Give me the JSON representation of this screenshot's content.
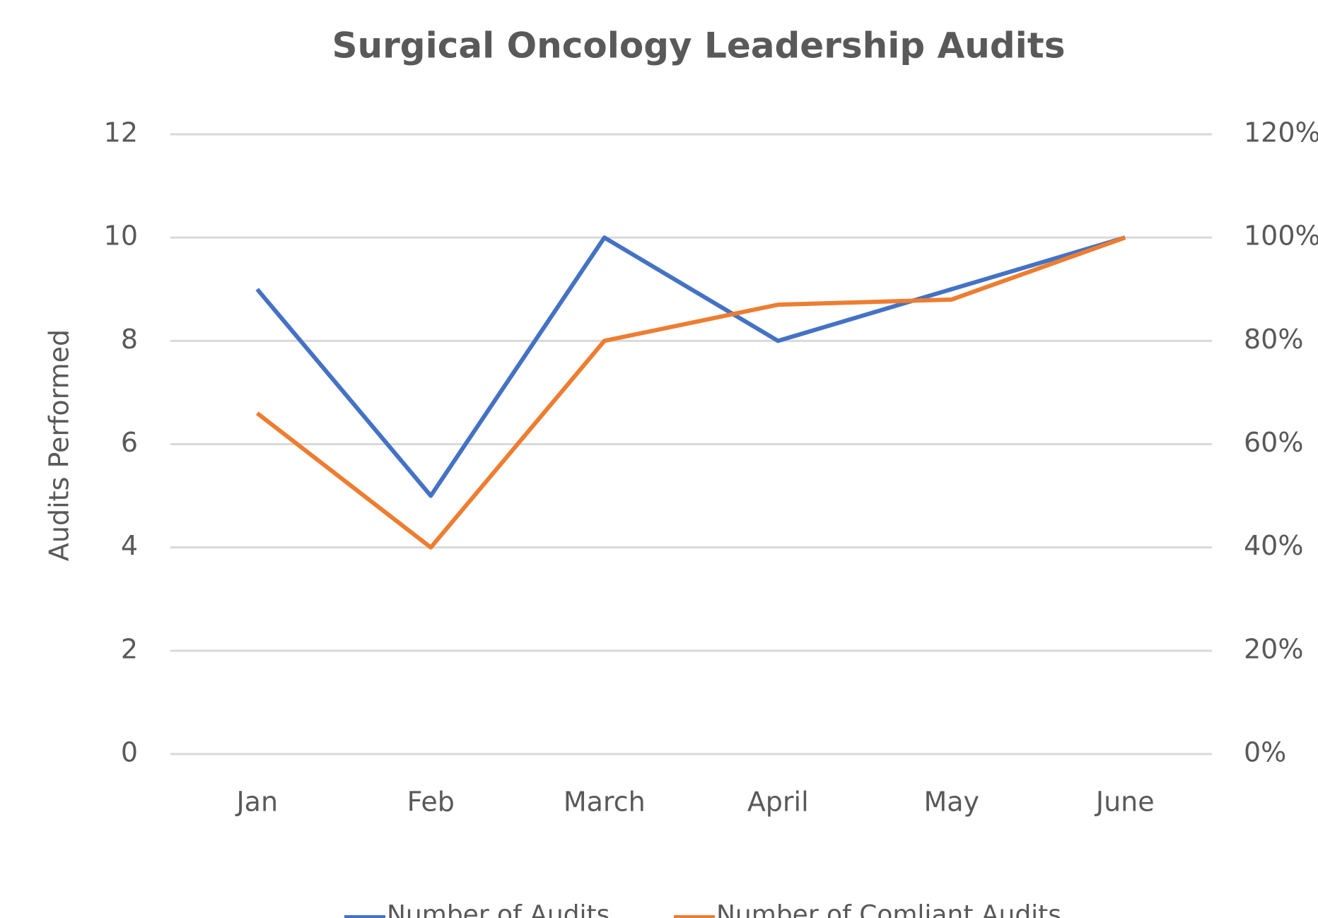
{
  "chart_data": {
    "type": "line",
    "title": "Surgical Oncology Leadership Audits",
    "y_label": "Audits Performed",
    "categories": [
      "Jan",
      "Feb",
      "March",
      "April",
      "May",
      "June"
    ],
    "series": [
      {
        "name": "Number of Audits",
        "color": "#4472c4",
        "values": [
          9,
          5,
          10,
          8,
          9,
          10
        ]
      },
      {
        "name": "Number of Comliant Audits",
        "color": "#ed7d31",
        "axis": "y2",
        "values": [
          66,
          40,
          80,
          87,
          88,
          100
        ]
      }
    ],
    "ylim": [
      0,
      12
    ],
    "yticks": [
      0,
      2,
      4,
      6,
      8,
      10,
      12
    ],
    "y2lim": [
      0,
      120
    ],
    "y2ticks": [
      {
        "value": 0,
        "label": "0%"
      },
      {
        "value": 20,
        "label": "20%"
      },
      {
        "value": 40,
        "label": "40%"
      },
      {
        "value": 60,
        "label": "60%"
      },
      {
        "value": 80,
        "label": "80%"
      },
      {
        "value": 100,
        "label": "100%"
      },
      {
        "value": 120,
        "label": "120%"
      }
    ],
    "grid": true,
    "legend": "bottom"
  }
}
